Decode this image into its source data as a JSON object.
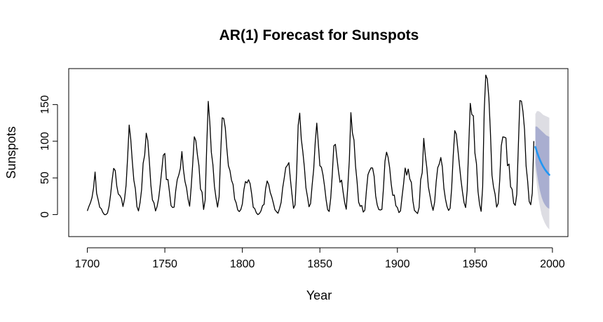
{
  "chart_data": {
    "type": "line",
    "title": "AR(1) Forecast for Sunspots",
    "xlabel": "Year",
    "ylabel": "Sunspots",
    "xlim": [
      1688,
      2010
    ],
    "ylim": [
      -30,
      199
    ],
    "x_ticks": [
      1700,
      1750,
      1800,
      1850,
      1900,
      1950,
      2000
    ],
    "y_ticks": [
      0,
      50,
      100,
      150
    ],
    "grid": false,
    "colors": {
      "series": "#000000",
      "forecast": "#2196F3",
      "interval_95": "#DDDDE3",
      "interval_80": "#A9AED0"
    },
    "series": [
      {
        "start_year": 1700,
        "values": [
          5,
          11,
          16,
          23,
          36,
          58,
          29,
          20,
          10,
          8,
          3,
          0,
          0,
          2,
          11,
          27,
          47,
          63,
          60,
          39,
          28,
          26,
          22,
          11,
          21,
          40,
          78,
          122,
          103,
          73,
          47,
          35,
          11,
          5,
          16,
          34,
          70,
          81,
          111,
          101,
          73,
          40,
          20,
          16,
          5,
          11,
          22,
          40,
          60,
          80.9,
          83.4,
          47.7,
          47.8,
          30.7,
          12.2,
          9.6,
          10.2,
          32.4,
          47.6,
          54,
          62.9,
          85.9,
          61.2,
          45.1,
          36.4,
          20.9,
          11.4,
          37.8,
          69.8,
          106.1,
          100.8,
          81.6,
          66.5,
          34.8,
          30.6,
          7,
          19.8,
          92.5,
          154.4,
          125.9,
          84.8,
          68.1,
          38.5,
          22.8,
          10.2,
          24.1,
          82.9,
          132,
          130.9,
          118.1,
          89.9,
          66.6,
          60,
          46.9,
          41,
          21.3,
          16,
          6.4,
          4.1,
          6.8,
          14.5,
          34,
          45,
          43.1,
          47.5,
          42.2,
          28.1,
          10.1,
          8.1,
          2.5,
          0,
          1.4,
          5,
          12.2,
          13.9,
          35.4,
          45.8,
          41.1,
          30.1,
          23.9,
          15.6,
          6.6,
          4,
          1.8,
          8.5,
          16.6,
          36.3,
          49.6,
          64.2,
          67,
          70.9,
          47.8,
          27.5,
          8.5,
          13.2,
          56.9,
          121.5,
          138.3,
          103.2,
          85.7,
          64.6,
          36.7,
          24.2,
          10.7,
          15,
          40.1,
          61.5,
          98.5,
          124.7,
          96.3,
          66.6,
          64.5,
          54.1,
          39,
          20.6,
          6.7,
          4.3,
          22.7,
          54.8,
          93.8,
          95.8,
          77.2,
          59.1,
          44,
          47,
          30.5,
          16.3,
          7.3,
          37.6,
          74,
          139,
          111.2,
          101.6,
          66.2,
          44.7,
          17,
          11.3,
          12.4,
          3.4,
          6,
          32.3,
          54.3,
          59.7,
          63.7,
          63.5,
          52.2,
          25.4,
          13.1,
          6.8,
          6.3,
          7.1,
          35.6,
          73,
          85.1,
          78,
          64,
          41.8,
          26.2,
          26.7,
          12.1,
          9.5,
          2.7,
          5,
          24.4,
          42,
          63.5,
          53.8,
          62,
          48.5,
          43.9,
          18.6,
          5.7,
          3.6,
          1.4,
          9.6,
          47.4,
          57.1,
          103.9,
          80.6,
          63.6,
          37.6,
          26.1,
          14.2,
          5.8,
          16.7,
          44.3,
          63.9,
          69,
          77.8,
          64.9,
          35.7,
          21.2,
          11.1,
          5.7,
          8.7,
          36.1,
          79.7,
          114.4,
          109.6,
          88.8,
          67.8,
          47.5,
          30.6,
          16.3,
          9.6,
          33.2,
          92.6,
          151.6,
          136.3,
          134.7,
          83.9,
          69.4,
          31.5,
          13.9,
          4.4,
          38,
          141.7,
          190.2,
          184.8,
          159,
          112.3,
          53.9,
          37.6,
          27.9,
          10.2,
          15.1,
          47,
          93.8,
          105.9,
          105.5,
          104.5,
          66.6,
          68.9,
          38,
          34.5,
          15.5,
          12.6,
          27.5,
          92.5,
          155.4,
          154.6,
          140.4,
          115.9,
          66.6,
          45.9,
          17.9,
          13.4,
          29.2,
          100.2
        ]
      }
    ],
    "forecast": {
      "years": [
        1989,
        1990,
        1991,
        1992,
        1993,
        1994,
        1995,
        1996,
        1997,
        1998
      ],
      "mean": [
        92.2,
        85.4,
        79.4,
        74.2,
        69.6,
        65.6,
        62.1,
        59.1,
        56.5,
        54.2
      ],
      "lo80": [
        71.0,
        56.0,
        43.0,
        32.0,
        24.0,
        18.0,
        14.0,
        11.0,
        9.0,
        8.0
      ],
      "hi80": [
        120.0,
        120.0,
        118.0,
        116.0,
        114.0,
        112.0,
        110.0,
        108.0,
        107.0,
        106.0
      ],
      "lo95": [
        60.0,
        40.0,
        22.0,
        10.0,
        0.0,
        -6.0,
        -11.0,
        -15.0,
        -18.0,
        -20.0
      ],
      "hi95": [
        137.0,
        141.0,
        141.0,
        140.0,
        138.0,
        136.0,
        135.0,
        134.0,
        133.0,
        132.0
      ]
    }
  }
}
